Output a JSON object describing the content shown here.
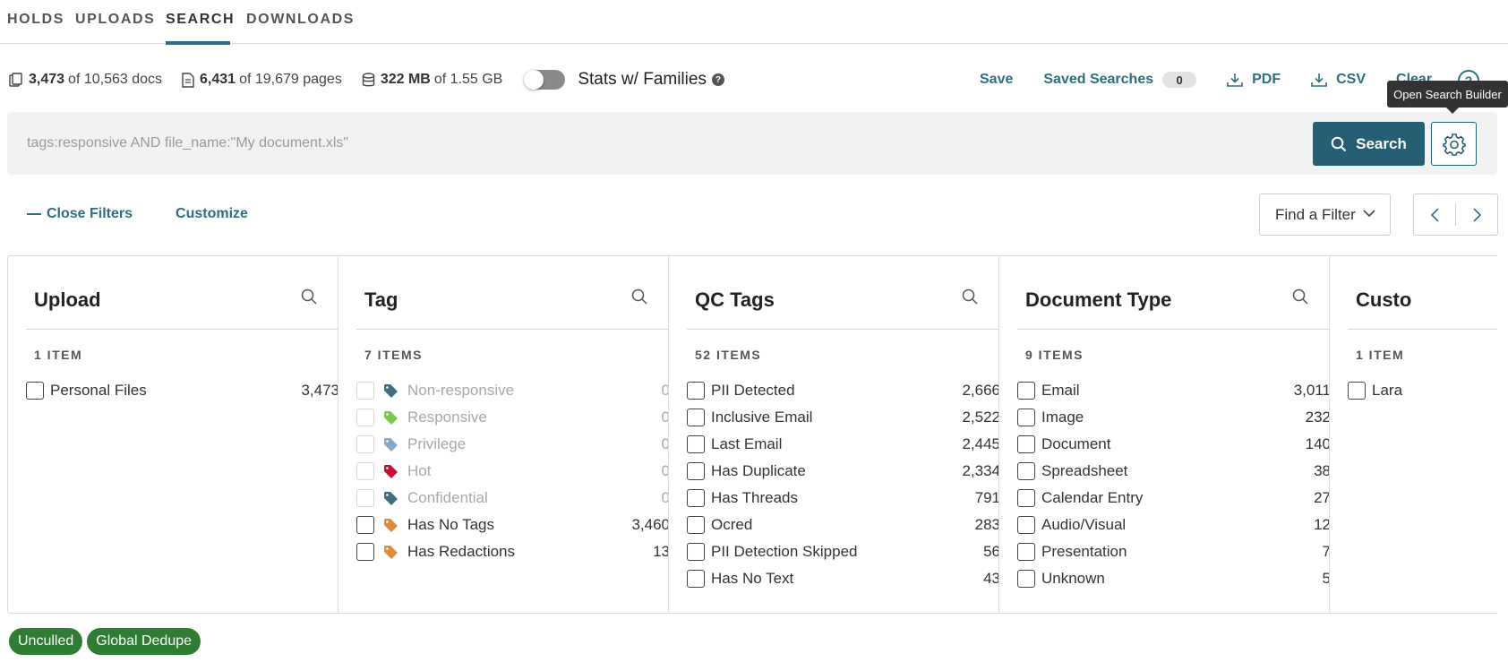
{
  "tabs": [
    {
      "label": "HOLDS"
    },
    {
      "label": "UPLOADS"
    },
    {
      "label": "SEARCH"
    },
    {
      "label": "DOWNLOADS"
    }
  ],
  "stats": {
    "docs": {
      "bold": "3,473",
      "rest": "of 10,563 docs"
    },
    "pages": {
      "bold": "6,431",
      "rest": "of 19,679 pages"
    },
    "size": {
      "bold": "322 MB",
      "rest": "of 1.55 GB"
    },
    "families_label": "Stats w/ Families"
  },
  "actions": {
    "save": "Save",
    "saved_searches": "Saved Searches",
    "saved_count": "0",
    "pdf": "PDF",
    "csv": "CSV",
    "clear": "Clear",
    "help": "?"
  },
  "tooltip": "Open Search Builder",
  "search": {
    "placeholder": "tags:responsive AND file_name:\"My document.xls\"",
    "button": "Search"
  },
  "filters": {
    "close": "Close Filters",
    "customize": "Customize",
    "find": "Find a Filter"
  },
  "panels": [
    {
      "title": "Upload",
      "count": "1 ITEM",
      "items": [
        {
          "label": "Personal Files",
          "value": "3,473"
        }
      ]
    },
    {
      "title": "Tag",
      "count": "7 ITEMS",
      "items": [
        {
          "label": "Non-responsive",
          "value": "0",
          "color": "#3f6d82"
        },
        {
          "label": "Responsive",
          "value": "0",
          "color": "#79c94a"
        },
        {
          "label": "Privilege",
          "value": "0",
          "color": "#86a9c9"
        },
        {
          "label": "Hot",
          "value": "0",
          "color": "#c8102e"
        },
        {
          "label": "Confidential",
          "value": "0",
          "color": "#3f6d82"
        },
        {
          "label": "Has No Tags",
          "value": "3,460",
          "color": "#e08a3c"
        },
        {
          "label": "Has Redactions",
          "value": "13",
          "color": "#e08a3c"
        }
      ]
    },
    {
      "title": "QC Tags",
      "count": "52 ITEMS",
      "items": [
        {
          "label": "PII Detected",
          "value": "2,666"
        },
        {
          "label": "Inclusive Email",
          "value": "2,522"
        },
        {
          "label": "Last Email",
          "value": "2,445"
        },
        {
          "label": "Has Duplicate",
          "value": "2,334"
        },
        {
          "label": "Has Threads",
          "value": "791"
        },
        {
          "label": "Ocred",
          "value": "283"
        },
        {
          "label": "PII Detection Skipped",
          "value": "56"
        },
        {
          "label": "Has No Text",
          "value": "43"
        }
      ]
    },
    {
      "title": "Document Type",
      "count": "9 ITEMS",
      "items": [
        {
          "label": "Email",
          "value": "3,011"
        },
        {
          "label": "Image",
          "value": "232"
        },
        {
          "label": "Document",
          "value": "140"
        },
        {
          "label": "Spreadsheet",
          "value": "38"
        },
        {
          "label": "Calendar Entry",
          "value": "27"
        },
        {
          "label": "Audio/Visual",
          "value": "12"
        },
        {
          "label": "Presentation",
          "value": "7"
        },
        {
          "label": "Unknown",
          "value": "5"
        }
      ]
    },
    {
      "title": "Custo",
      "count": "1 ITEM",
      "items": [
        {
          "label": "Lara",
          "value": ""
        }
      ]
    }
  ],
  "badges": [
    {
      "label": "Unculled"
    },
    {
      "label": "Global Dedupe"
    }
  ],
  "colors": {
    "accent": "#2f6e82",
    "search_button": "#265f73",
    "badge_green": "#2e7d32"
  }
}
